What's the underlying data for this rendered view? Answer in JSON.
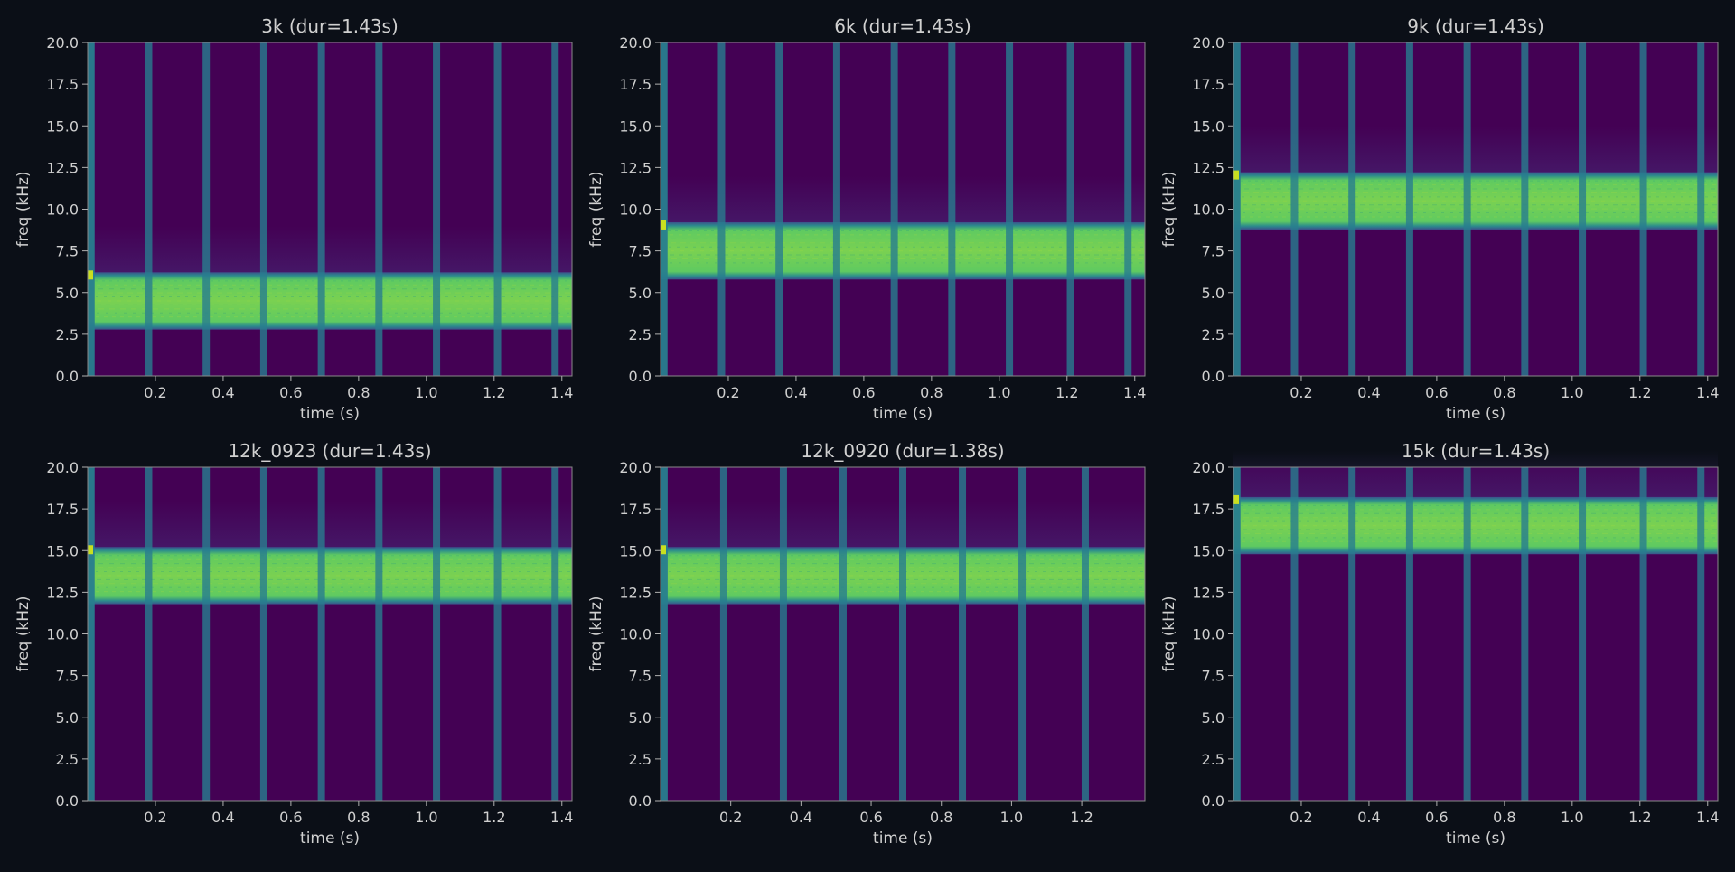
{
  "figure": {
    "background": "#0b0f17",
    "text_color": "#d0d0d0",
    "colormap": "viridis",
    "colors": {
      "background_level": "#440154",
      "band_level": "#5fca61",
      "click_level": "#287d8e"
    }
  },
  "chart_data": [
    {
      "type": "heatmap",
      "title": "3k  (dur=1.43s)",
      "xlabel": "time (s)",
      "ylabel": "freq (kHz)",
      "xlim": [
        0,
        1.43
      ],
      "ylim": [
        0,
        20
      ],
      "xticks": [
        "0.2",
        "0.4",
        "0.6",
        "0.8",
        "1.0",
        "1.2",
        "1.4"
      ],
      "yticks": [
        "0.0",
        "2.5",
        "5.0",
        "7.5",
        "10.0",
        "12.5",
        "15.0",
        "17.5",
        "20.0"
      ],
      "band_khz": [
        3,
        6
      ],
      "click_times_s": [
        0.01,
        0.18,
        0.35,
        0.52,
        0.69,
        0.86,
        1.03,
        1.21,
        1.38
      ],
      "grid": false,
      "legend": "none"
    },
    {
      "type": "heatmap",
      "title": "6k  (dur=1.43s)",
      "xlabel": "time (s)",
      "ylabel": "freq (kHz)",
      "xlim": [
        0,
        1.43
      ],
      "ylim": [
        0,
        20
      ],
      "xticks": [
        "0.2",
        "0.4",
        "0.6",
        "0.8",
        "1.0",
        "1.2",
        "1.4"
      ],
      "yticks": [
        "0.0",
        "2.5",
        "5.0",
        "7.5",
        "10.0",
        "12.5",
        "15.0",
        "17.5",
        "20.0"
      ],
      "band_khz": [
        6,
        9
      ],
      "click_times_s": [
        0.01,
        0.18,
        0.35,
        0.52,
        0.69,
        0.86,
        1.03,
        1.21,
        1.38
      ],
      "grid": false,
      "legend": "none"
    },
    {
      "type": "heatmap",
      "title": "9k  (dur=1.43s)",
      "xlabel": "time (s)",
      "ylabel": "freq (kHz)",
      "xlim": [
        0,
        1.43
      ],
      "ylim": [
        0,
        20
      ],
      "xticks": [
        "0.2",
        "0.4",
        "0.6",
        "0.8",
        "1.0",
        "1.2",
        "1.4"
      ],
      "yticks": [
        "0.0",
        "2.5",
        "5.0",
        "7.5",
        "10.0",
        "12.5",
        "15.0",
        "17.5",
        "20.0"
      ],
      "band_khz": [
        9,
        12
      ],
      "click_times_s": [
        0.01,
        0.18,
        0.35,
        0.52,
        0.69,
        0.86,
        1.03,
        1.21,
        1.38
      ],
      "grid": false,
      "legend": "none"
    },
    {
      "type": "heatmap",
      "title": "12k_0923  (dur=1.43s)",
      "xlabel": "time (s)",
      "ylabel": "freq (kHz)",
      "xlim": [
        0,
        1.43
      ],
      "ylim": [
        0,
        20
      ],
      "xticks": [
        "0.2",
        "0.4",
        "0.6",
        "0.8",
        "1.0",
        "1.2",
        "1.4"
      ],
      "yticks": [
        "0.0",
        "2.5",
        "5.0",
        "7.5",
        "10.0",
        "12.5",
        "15.0",
        "17.5",
        "20.0"
      ],
      "band_khz": [
        12,
        15
      ],
      "click_times_s": [
        0.01,
        0.18,
        0.35,
        0.52,
        0.69,
        0.86,
        1.03,
        1.21,
        1.38
      ],
      "grid": false,
      "legend": "none"
    },
    {
      "type": "heatmap",
      "title": "12k_0920  (dur=1.38s)",
      "xlabel": "time (s)",
      "ylabel": "freq (kHz)",
      "xlim": [
        0,
        1.38
      ],
      "ylim": [
        0,
        20
      ],
      "xticks": [
        "0.2",
        "0.4",
        "0.6",
        "0.8",
        "1.0",
        "1.2"
      ],
      "yticks": [
        "0.0",
        "2.5",
        "5.0",
        "7.5",
        "10.0",
        "12.5",
        "15.0",
        "17.5",
        "20.0"
      ],
      "band_khz": [
        12,
        15
      ],
      "click_times_s": [
        0.01,
        0.18,
        0.35,
        0.52,
        0.69,
        0.86,
        1.03,
        1.21
      ],
      "grid": false,
      "legend": "none"
    },
    {
      "type": "heatmap",
      "title": "15k  (dur=1.43s)",
      "xlabel": "time (s)",
      "ylabel": "freq (kHz)",
      "xlim": [
        0,
        1.43
      ],
      "ylim": [
        0,
        20
      ],
      "xticks": [
        "0.2",
        "0.4",
        "0.6",
        "0.8",
        "1.0",
        "1.2",
        "1.4"
      ],
      "yticks": [
        "0.0",
        "2.5",
        "5.0",
        "7.5",
        "10.0",
        "12.5",
        "15.0",
        "17.5",
        "20.0"
      ],
      "band_khz": [
        15,
        18
      ],
      "click_times_s": [
        0.01,
        0.18,
        0.35,
        0.52,
        0.69,
        0.86,
        1.03,
        1.21,
        1.38
      ],
      "grid": false,
      "legend": "none"
    }
  ]
}
